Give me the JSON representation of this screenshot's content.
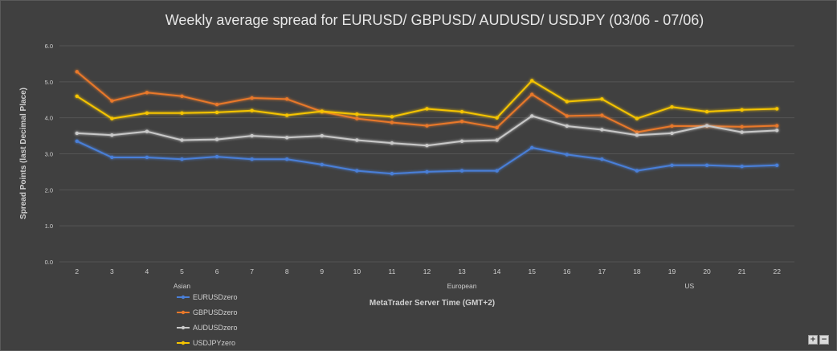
{
  "chart_data": {
    "type": "line",
    "title": "Weekly average spread for EURUSD/ GBPUSD/ AUDUSD/ USDJPY (03/06 - 07/06)",
    "xlabel": "MetaTrader Server Time (GMT+2)",
    "ylabel": "Spread Points  (last Decimal Place)",
    "x": [
      "2",
      "3",
      "4",
      "5",
      "6",
      "7",
      "8",
      "9",
      "10",
      "11",
      "12",
      "13",
      "14",
      "15",
      "16",
      "17",
      "18",
      "19",
      "20",
      "21",
      "22"
    ],
    "session_labels": [
      {
        "label": "Asian",
        "at": "5"
      },
      {
        "label": "European",
        "at": "13"
      },
      {
        "label": "US",
        "at": "19.5"
      }
    ],
    "ylim": [
      0,
      6
    ],
    "yticks": [
      "0.0",
      "1.0",
      "2.0",
      "3.0",
      "4.0",
      "5.0",
      "6.0"
    ],
    "grid": "horizontal",
    "legend_position": "bottom-left",
    "series": [
      {
        "name": "EURUSDzero",
        "color": "#4a7fd8",
        "values": [
          3.35,
          2.9,
          2.9,
          2.85,
          2.92,
          2.85,
          2.85,
          2.7,
          2.53,
          2.45,
          2.5,
          2.53,
          2.53,
          3.17,
          2.98,
          2.85,
          2.53,
          2.68,
          2.68,
          2.65,
          2.68
        ]
      },
      {
        "name": "GBPUSDzero",
        "color": "#e8782a",
        "values": [
          5.28,
          4.47,
          4.7,
          4.6,
          4.37,
          4.55,
          4.52,
          4.17,
          3.98,
          3.87,
          3.78,
          3.9,
          3.73,
          4.65,
          4.05,
          4.07,
          3.6,
          3.77,
          3.77,
          3.75,
          3.78
        ]
      },
      {
        "name": "AUDUSDzero",
        "color": "#c8c8c8",
        "values": [
          3.57,
          3.52,
          3.62,
          3.38,
          3.4,
          3.5,
          3.45,
          3.5,
          3.38,
          3.3,
          3.23,
          3.35,
          3.38,
          4.05,
          3.77,
          3.67,
          3.52,
          3.57,
          3.78,
          3.6,
          3.65
        ]
      },
      {
        "name": "USDJPYzero",
        "color": "#f5c400",
        "values": [
          4.6,
          3.98,
          4.13,
          4.13,
          4.15,
          4.2,
          4.07,
          4.18,
          4.1,
          4.03,
          4.25,
          4.17,
          4.0,
          5.03,
          4.45,
          4.52,
          3.98,
          4.3,
          4.17,
          4.22,
          4.25
        ]
      }
    ]
  },
  "zoom_controls": {
    "plus": "+",
    "minus": "−"
  }
}
